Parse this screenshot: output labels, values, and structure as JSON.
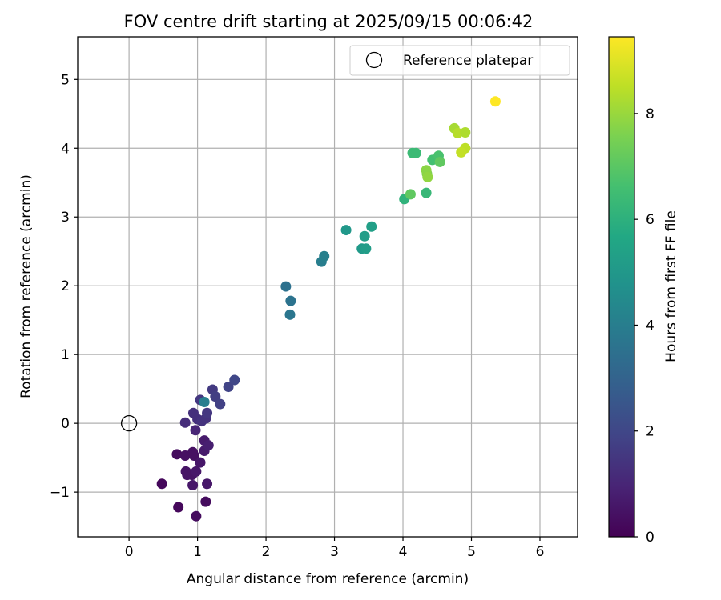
{
  "chart_data": {
    "type": "scatter",
    "title": "FOV centre drift starting at 2025/09/15 00:06:42",
    "xlabel": "Angular distance from reference (arcmin)",
    "ylabel": "Rotation from reference (arcmin)",
    "xlim": [
      -0.75,
      6.55
    ],
    "ylim": [
      -1.65,
      5.62
    ],
    "xticks": [
      0,
      1,
      2,
      3,
      4,
      5,
      6
    ],
    "yticks": [
      -1,
      0,
      1,
      2,
      3,
      4,
      5
    ],
    "grid": true,
    "legend": {
      "location": "upper right",
      "entries": [
        "Reference platepar"
      ]
    },
    "reference_point": {
      "x": 0,
      "y": 0,
      "marker": "open-circle",
      "label": "Reference platepar"
    },
    "colorbar": {
      "label": "Hours from first FF file",
      "range": [
        0,
        9.45
      ],
      "ticks": [
        0,
        2,
        4,
        6,
        8
      ],
      "colormap": "viridis"
    },
    "points": [
      {
        "x": 0.48,
        "y": -0.88,
        "c": 0.2
      },
      {
        "x": 0.72,
        "y": -1.22,
        "c": 0.2
      },
      {
        "x": 0.98,
        "y": -1.35,
        "c": 0.3
      },
      {
        "x": 1.12,
        "y": -1.14,
        "c": 0.3
      },
      {
        "x": 0.7,
        "y": -0.45,
        "c": 0.3
      },
      {
        "x": 0.82,
        "y": -0.47,
        "c": 0.4
      },
      {
        "x": 0.93,
        "y": -0.42,
        "c": 0.4
      },
      {
        "x": 0.95,
        "y": -0.47,
        "c": 0.4
      },
      {
        "x": 0.83,
        "y": -0.7,
        "c": 0.5
      },
      {
        "x": 0.85,
        "y": -0.75,
        "c": 0.5
      },
      {
        "x": 0.92,
        "y": -0.75,
        "c": 0.5
      },
      {
        "x": 0.98,
        "y": -0.7,
        "c": 0.6
      },
      {
        "x": 0.93,
        "y": -0.9,
        "c": 0.6
      },
      {
        "x": 1.04,
        "y": -0.57,
        "c": 0.6
      },
      {
        "x": 1.14,
        "y": -0.88,
        "c": 0.6
      },
      {
        "x": 1.1,
        "y": -0.4,
        "c": 0.7
      },
      {
        "x": 1.1,
        "y": -0.25,
        "c": 0.7
      },
      {
        "x": 1.16,
        "y": -0.32,
        "c": 0.8
      },
      {
        "x": 0.97,
        "y": -0.1,
        "c": 1.0
      },
      {
        "x": 0.82,
        "y": 0.01,
        "c": 1.2
      },
      {
        "x": 0.94,
        "y": 0.15,
        "c": 1.3
      },
      {
        "x": 1.0,
        "y": 0.06,
        "c": 1.3
      },
      {
        "x": 1.06,
        "y": 0.03,
        "c": 1.4
      },
      {
        "x": 1.12,
        "y": 0.07,
        "c": 1.4
      },
      {
        "x": 1.14,
        "y": 0.15,
        "c": 1.5
      },
      {
        "x": 1.04,
        "y": 0.34,
        "c": 1.5
      },
      {
        "x": 1.22,
        "y": 0.49,
        "c": 1.6
      },
      {
        "x": 1.26,
        "y": 0.39,
        "c": 1.7
      },
      {
        "x": 1.33,
        "y": 0.28,
        "c": 1.8
      },
      {
        "x": 1.45,
        "y": 0.53,
        "c": 1.9
      },
      {
        "x": 1.54,
        "y": 0.63,
        "c": 2.0
      },
      {
        "x": 1.1,
        "y": 0.31,
        "c": 4.0
      },
      {
        "x": 2.29,
        "y": 1.99,
        "c": 3.5
      },
      {
        "x": 2.36,
        "y": 1.78,
        "c": 3.6
      },
      {
        "x": 2.35,
        "y": 1.58,
        "c": 3.7
      },
      {
        "x": 2.81,
        "y": 2.35,
        "c": 4.0
      },
      {
        "x": 2.85,
        "y": 2.43,
        "c": 4.1
      },
      {
        "x": 3.17,
        "y": 2.81,
        "c": 5.0
      },
      {
        "x": 3.4,
        "y": 2.54,
        "c": 5.1
      },
      {
        "x": 3.46,
        "y": 2.54,
        "c": 5.2
      },
      {
        "x": 3.44,
        "y": 2.72,
        "c": 5.2
      },
      {
        "x": 3.54,
        "y": 2.86,
        "c": 5.3
      },
      {
        "x": 4.02,
        "y": 3.26,
        "c": 6.1
      },
      {
        "x": 4.34,
        "y": 3.35,
        "c": 6.3
      },
      {
        "x": 4.14,
        "y": 3.93,
        "c": 6.4
      },
      {
        "x": 4.19,
        "y": 3.93,
        "c": 6.4
      },
      {
        "x": 4.43,
        "y": 3.83,
        "c": 6.6
      },
      {
        "x": 4.52,
        "y": 3.89,
        "c": 6.7
      },
      {
        "x": 4.11,
        "y": 3.33,
        "c": 7.1
      },
      {
        "x": 4.54,
        "y": 3.8,
        "c": 7.1
      },
      {
        "x": 4.35,
        "y": 3.63,
        "c": 7.6
      },
      {
        "x": 4.34,
        "y": 3.68,
        "c": 7.8
      },
      {
        "x": 4.36,
        "y": 3.58,
        "c": 7.9
      },
      {
        "x": 4.75,
        "y": 4.29,
        "c": 8.2
      },
      {
        "x": 4.8,
        "y": 4.22,
        "c": 8.4
      },
      {
        "x": 4.91,
        "y": 4.23,
        "c": 8.3
      },
      {
        "x": 4.91,
        "y": 4.0,
        "c": 8.5
      },
      {
        "x": 4.85,
        "y": 3.94,
        "c": 8.6
      },
      {
        "x": 5.35,
        "y": 4.68,
        "c": 9.45
      }
    ]
  }
}
